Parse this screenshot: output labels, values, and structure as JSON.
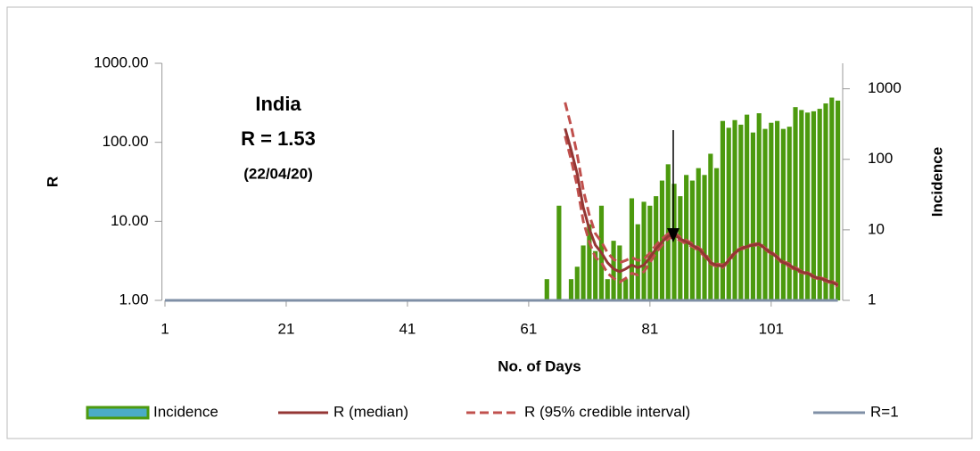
{
  "chart_data": {
    "type": "combo",
    "x_label": "No. of Days",
    "y_label": "R",
    "y2_label": "Incidence",
    "annotations": [
      "India",
      "R = 1.53",
      "(22/04/20)"
    ],
    "xlim": [
      0.5,
      112.5
    ],
    "xticks": [
      1,
      21,
      41,
      61,
      81,
      101
    ],
    "ylim": [
      1,
      1000
    ],
    "yscale": "log",
    "yticks": [
      {
        "value": 1,
        "label": "1.00"
      },
      {
        "value": 10,
        "label": "10.00"
      },
      {
        "value": 100,
        "label": "100.00"
      },
      {
        "value": 1000,
        "label": "1000.00"
      }
    ],
    "y2lim": [
      1,
      2300
    ],
    "y2scale": "log",
    "y2ticks": [
      1,
      10,
      100,
      1000
    ],
    "incidence": {
      "name": "Incidence",
      "color": "#4c9a0e",
      "legend_color": "#4bacc6",
      "axis": "y2",
      "x": [
        64,
        65,
        66,
        67,
        68,
        69,
        70,
        71,
        72,
        73,
        74,
        75,
        76,
        77,
        78,
        79,
        80,
        81,
        82,
        83,
        84,
        85,
        86,
        87,
        88,
        89,
        90,
        91,
        92,
        93,
        94,
        95,
        96,
        97,
        98,
        99,
        100,
        101,
        102,
        103,
        104,
        105,
        106,
        107,
        108,
        109,
        110,
        111,
        112
      ],
      "values": [
        2,
        0,
        22,
        0,
        2,
        3,
        6,
        12,
        5,
        22,
        2,
        7,
        6,
        2,
        28,
        12,
        25,
        22,
        30,
        50,
        85,
        45,
        30,
        60,
        50,
        75,
        60,
        120,
        75,
        350,
        280,
        360,
        310,
        430,
        240,
        450,
        270,
        330,
        350,
        270,
        290,
        550,
        500,
        460,
        480,
        520,
        620,
        750,
        680
      ]
    },
    "median": {
      "name": "R (median)",
      "color": "#943634",
      "x": [
        67,
        68,
        69,
        70,
        71,
        72,
        73,
        74,
        75,
        76,
        77,
        78,
        79,
        80,
        81,
        82,
        83,
        84,
        85,
        86,
        87,
        88,
        89,
        90,
        91,
        92,
        93,
        94,
        95,
        96,
        97,
        98,
        99,
        100,
        101,
        102,
        103,
        104,
        105,
        106,
        107,
        108,
        109,
        110,
        111,
        112
      ],
      "values": [
        150,
        80,
        40,
        15,
        8,
        5,
        4,
        3,
        2.5,
        2.3,
        2.5,
        2.8,
        2.6,
        2.8,
        3.5,
        4.5,
        5.5,
        6.5,
        6.8,
        6,
        5.5,
        5,
        4.5,
        3.8,
        3,
        2.8,
        2.7,
        3.2,
        4,
        4.5,
        4.8,
        5,
        5.2,
        4.5,
        4,
        3.5,
        3,
        2.8,
        2.5,
        2.3,
        2.2,
        2,
        1.9,
        1.8,
        1.7,
        1.55
      ]
    },
    "interval": {
      "name": "R (95% credible interval)",
      "color": "#c0504d",
      "x": [
        67,
        68,
        69,
        70,
        71,
        72,
        73,
        74,
        75,
        76,
        77,
        78,
        79,
        80,
        81,
        82,
        83,
        84,
        85,
        86,
        87,
        88,
        89,
        90,
        91,
        92,
        93,
        94,
        95,
        96,
        97,
        98,
        99,
        100,
        101,
        102,
        103,
        104,
        105,
        106,
        107,
        108,
        109,
        110,
        111,
        112
      ],
      "upper": [
        320,
        160,
        70,
        25,
        12,
        7,
        5.5,
        4,
        3.3,
        3,
        3.2,
        3.5,
        3.2,
        3.3,
        4,
        5,
        6,
        7,
        7.2,
        6.3,
        5.8,
        5.2,
        4.7,
        4,
        3.1,
        2.9,
        2.8,
        3.3,
        4.1,
        4.6,
        4.9,
        5.1,
        5.3,
        4.6,
        4.1,
        3.6,
        3.1,
        2.9,
        2.6,
        2.35,
        2.25,
        2.05,
        1.95,
        1.85,
        1.75,
        1.6
      ],
      "lower": [
        120,
        60,
        28,
        10,
        5.5,
        3.5,
        3,
        2.2,
        1.9,
        1.7,
        1.9,
        2.2,
        2.1,
        2.3,
        3,
        4,
        5,
        6,
        6.4,
        5.7,
        5.2,
        4.8,
        4.3,
        3.6,
        2.9,
        2.7,
        2.6,
        3.1,
        3.9,
        4.4,
        4.7,
        4.9,
        5.1,
        4.4,
        3.9,
        3.4,
        2.9,
        2.7,
        2.4,
        2.25,
        2.15,
        1.95,
        1.85,
        1.75,
        1.65,
        1.5
      ]
    },
    "threshold": {
      "name": "R=1",
      "color": "#7f8fa6",
      "x": [
        1,
        112
      ],
      "values": [
        1,
        1
      ]
    }
  }
}
